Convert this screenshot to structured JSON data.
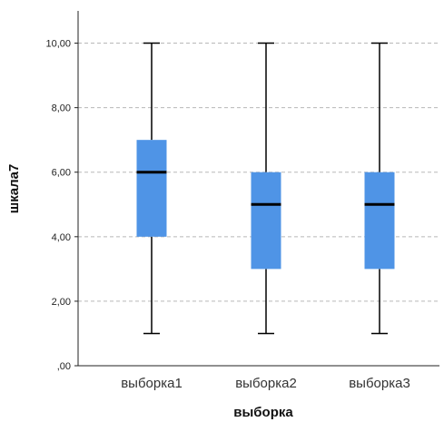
{
  "chart_data": {
    "type": "boxplot",
    "title": "",
    "xlabel": "выборка",
    "ylabel": "шкала7",
    "ylim": [
      0,
      11
    ],
    "yticks": [
      0,
      2,
      4,
      6,
      8,
      10
    ],
    "ytick_labels": [
      ",00",
      "2,00",
      "4,00",
      "6,00",
      "8,00",
      "10,00"
    ],
    "grid": "horizontal-dashed",
    "categories": [
      "выборка1",
      "выборка2",
      "выборка3"
    ],
    "boxes": [
      {
        "category": "выборка1",
        "min": 1,
        "q1": 4,
        "median": 6,
        "q3": 7,
        "max": 10
      },
      {
        "category": "выборка2",
        "min": 1,
        "q1": 3,
        "median": 5,
        "q3": 6,
        "max": 10
      },
      {
        "category": "выборка3",
        "min": 1,
        "q1": 3,
        "median": 5,
        "q3": 6,
        "max": 10
      }
    ],
    "colors": {
      "box_fill": "#4f94e6",
      "median": "#000000",
      "whisker": "#000000",
      "grid": "#b8b8b8",
      "axis": "#222222"
    }
  }
}
